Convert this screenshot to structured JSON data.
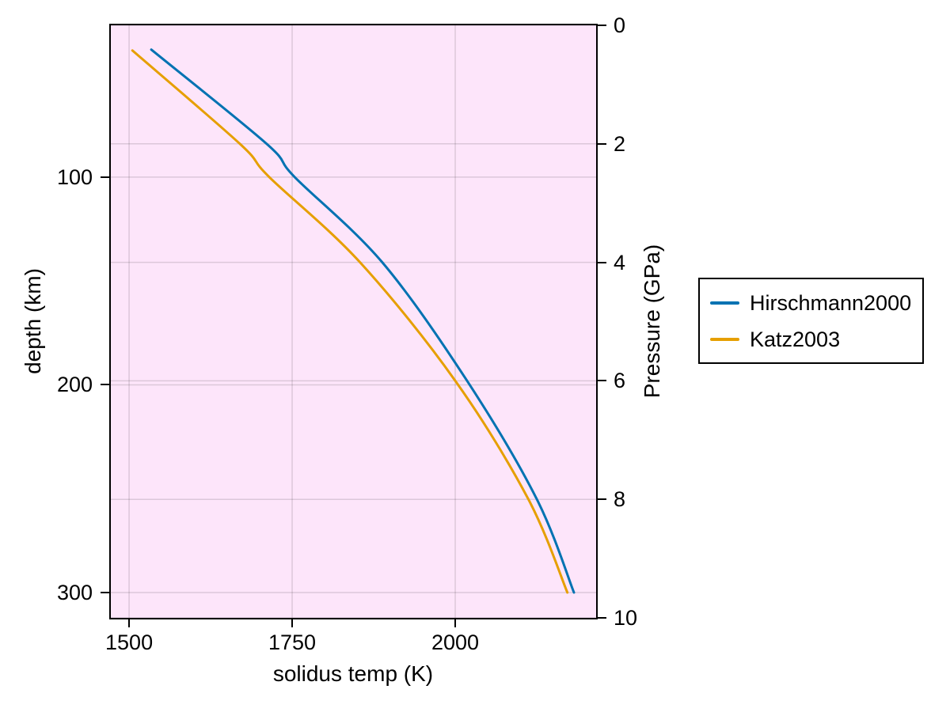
{
  "figure": {
    "background": "#ffffff"
  },
  "axes": {
    "plot_background": "#fde5fa",
    "grid_color": "rgba(0,0,0,0.13)",
    "spine_color": "#000000",
    "tick_color": "#000000"
  },
  "legend": {
    "position": "right-outside",
    "background": "#ffffff",
    "border_color": "#000000"
  },
  "chart_data": {
    "type": "line",
    "title": "",
    "xlabel": "solidus temp (K)",
    "ylabel_left": "depth (km)",
    "ylabel_right": "Pressure (GPa)",
    "xlim": [
      1472,
      2216
    ],
    "x_ticks": [
      1500,
      1750,
      2000
    ],
    "depth_lim": [
      26.9,
      312.2
    ],
    "depth_ticks": [
      100,
      200,
      300
    ],
    "pressure_lim": [
      0,
      10
    ],
    "pressure_ticks": [
      0,
      2,
      4,
      6,
      8,
      10
    ],
    "grid": true,
    "y_axis_inverted_note": "depth increases downward; pressure 0 GPa at top, 10 GPa at bottom",
    "series": [
      {
        "name": "Hirschmann2000",
        "color": "#0072B2",
        "linewidth": 3,
        "points_T_K_vs_depth_km": [
          [
            1534,
            38.6
          ],
          [
            1711,
            84
          ],
          [
            1754,
            100
          ],
          [
            1888,
            141
          ],
          [
            2018,
            198
          ],
          [
            2125,
            255
          ],
          [
            2182,
            300
          ]
        ]
      },
      {
        "name": "Katz2003",
        "color": "#E69F00",
        "linewidth": 3,
        "points_T_K_vs_depth_km": [
          [
            1505,
            39
          ],
          [
            1670,
            84
          ],
          [
            1715,
            100
          ],
          [
            1854,
            141
          ],
          [
            2000,
            198
          ],
          [
            2112,
            255
          ],
          [
            2172,
            300
          ]
        ]
      }
    ]
  }
}
